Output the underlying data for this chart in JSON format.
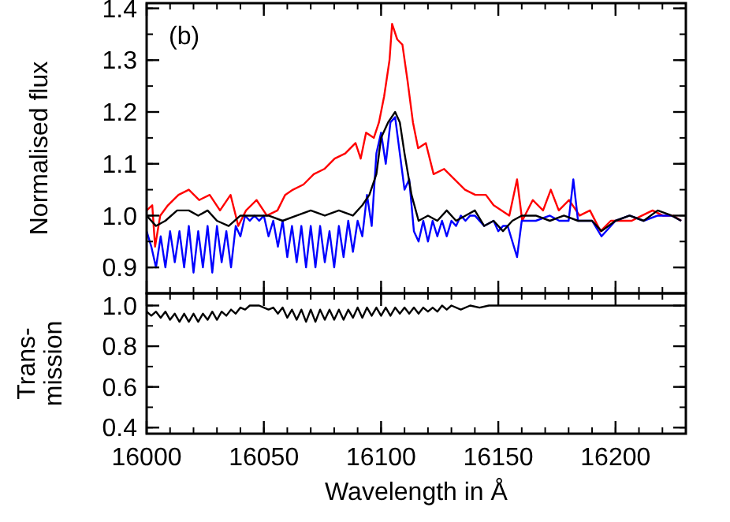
{
  "chart_data": [
    {
      "type": "line",
      "ylabel": "Normalised flux",
      "annotations": [
        "(b)"
      ],
      "xlim": [
        16000,
        16230
      ],
      "ylim": [
        0.85,
        1.41
      ],
      "tick_labels": "y",
      "grid": false,
      "line_style": "solid",
      "xticks": [
        16000,
        16050,
        16100,
        16150,
        16200
      ],
      "yticks": [
        {
          "value": 0.9,
          "label": "0.9"
        },
        {
          "value": 1,
          "label": "1.0"
        },
        {
          "value": 1.1,
          "label": "1.1"
        },
        {
          "value": 1.2,
          "label": "1.2"
        },
        {
          "value": 1.3,
          "label": "1.3"
        },
        {
          "value": 1.4,
          "label": "1.4"
        }
      ],
      "series": [
        {
          "color": "#ff0000",
          "x": [
            16000,
            16002.4,
            16003.6,
            16005.8,
            16009.1,
            16013.6,
            16018,
            16022.4,
            16026.9,
            16031.3,
            16035.8,
            16039.1,
            16042.4,
            16046.9,
            16051.3,
            16055.8,
            16059.1,
            16062.4,
            16066.9,
            16071.3,
            16075.8,
            16080.2,
            16084.7,
            16089.1,
            16091.3,
            16093.6,
            16096.9,
            16099.1,
            16101.3,
            16103.6,
            16104.7,
            16106.9,
            16109.1,
            16111.3,
            16113.6,
            16115.8,
            16119.1,
            16122.4,
            16126.9,
            16131.3,
            16135.8,
            16140.2,
            16144.7,
            16148,
            16151.3,
            16154.7,
            16158,
            16160.2,
            16164.7,
            16169.1,
            16172.4,
            16175.8,
            16180.2,
            16184.7,
            16189.1,
            16193.6,
            16198,
            16202.4,
            16206.9,
            16211.3,
            16215.8,
            16220.2,
            16224.7,
            16228
          ],
          "values": [
            1.01,
            1.02,
            0.94,
            1.0,
            1.02,
            1.04,
            1.05,
            1.03,
            1.04,
            1.01,
            1.04,
            0.98,
            1.01,
            1.03,
            1.0,
            1.01,
            1.04,
            1.05,
            1.06,
            1.08,
            1.09,
            1.11,
            1.12,
            1.14,
            1.11,
            1.16,
            1.15,
            1.18,
            1.23,
            1.3,
            1.37,
            1.34,
            1.33,
            1.26,
            1.18,
            1.13,
            1.14,
            1.08,
            1.09,
            1.07,
            1.05,
            1.04,
            1.04,
            1.02,
            1.01,
            1.0,
            1.07,
            0.99,
            1.03,
            1.01,
            1.05,
            1.01,
            1.03,
            1.0,
            1.01,
            0.97,
            0.99,
            0.99,
            0.99,
            1.0,
            1.01,
            1.0,
            1.0,
            0.99
          ]
        },
        {
          "color": "#0000ff",
          "x": [
            16000,
            16002,
            16004,
            16006,
            16008,
            16010,
            16012,
            16014,
            16016,
            16018,
            16020,
            16022,
            16024,
            16026,
            16028,
            16030,
            16032,
            16034,
            16036,
            16038,
            16040,
            16042,
            16044,
            16046,
            16048,
            16050,
            16052,
            16054,
            16056,
            16058,
            16060,
            16062,
            16064,
            16066,
            16068,
            16070,
            16072,
            16074,
            16076,
            16078,
            16080,
            16082,
            16084,
            16086,
            16088,
            16090,
            16092,
            16094,
            16096,
            16098,
            16100,
            16102,
            16104,
            16106,
            16108,
            16110,
            16112,
            16114,
            16116,
            16118,
            16120,
            16122,
            16124,
            16126,
            16128,
            16130,
            16132,
            16134,
            16136,
            16138,
            16140,
            16144,
            16148,
            16150,
            16152,
            16154,
            16158,
            16160,
            16166,
            16172,
            16176,
            16180,
            16182,
            16184,
            16190,
            16194,
            16200,
            16206,
            16212,
            16218,
            16224,
            16228
          ],
          "values": [
            0.97,
            0.94,
            0.9,
            0.96,
            0.9,
            0.97,
            0.91,
            0.97,
            0.9,
            0.98,
            0.89,
            0.97,
            0.9,
            0.98,
            0.89,
            0.98,
            0.91,
            0.97,
            0.9,
            0.98,
            0.96,
            1.0,
            0.99,
            1.0,
            0.99,
            1.0,
            0.96,
            0.99,
            0.94,
            0.99,
            0.92,
            0.98,
            0.91,
            0.98,
            0.9,
            0.98,
            0.9,
            0.98,
            0.91,
            0.97,
            0.9,
            0.98,
            0.92,
            0.99,
            0.93,
            0.99,
            0.96,
            1.04,
            0.98,
            1.12,
            1.16,
            1.1,
            1.18,
            1.19,
            1.12,
            1.05,
            1.07,
            0.97,
            0.95,
            0.99,
            0.95,
            0.99,
            0.96,
            0.99,
            0.96,
            0.99,
            0.98,
            1.0,
            0.99,
            1.0,
            1.0,
            0.98,
            0.99,
            0.97,
            0.98,
            0.98,
            0.92,
            0.99,
            0.99,
            1.0,
            0.99,
            0.99,
            1.07,
            0.99,
            0.99,
            0.96,
            0.99,
            1.0,
            0.99,
            1.0,
            1.0,
            0.99
          ]
        },
        {
          "color": "#000000",
          "x": [
            16000,
            16004,
            16008,
            16013,
            16018,
            16022,
            16026,
            16030,
            16035,
            16040,
            16046,
            16052,
            16058,
            16064,
            16070,
            16076,
            16082,
            16088,
            16092,
            16095,
            16098,
            16100,
            16103,
            16106,
            16108,
            16110,
            16113,
            16116,
            16120,
            16124,
            16128,
            16132,
            16136,
            16140,
            16144,
            16148,
            16152,
            16156,
            16160,
            16166,
            16172,
            16178,
            16184,
            16190,
            16194,
            16200,
            16206,
            16212,
            16218,
            16224,
            16228
          ],
          "values": [
            1.0,
            0.98,
            0.99,
            1.01,
            1.01,
            1.0,
            1.01,
            0.99,
            0.98,
            1.0,
            1.0,
            1.0,
            0.99,
            1.0,
            1.01,
            1.0,
            1.01,
            1.0,
            1.02,
            1.04,
            1.08,
            1.15,
            1.18,
            1.2,
            1.18,
            1.12,
            1.04,
            0.99,
            1.0,
            0.99,
            1.01,
            0.99,
            1.0,
            1.01,
            0.98,
            0.99,
            0.97,
            0.99,
            1.0,
            1.0,
            0.99,
            1.0,
            0.99,
            0.99,
            0.97,
            0.99,
            1.0,
            0.99,
            1.01,
            1.0,
            0.99
          ]
        }
      ]
    },
    {
      "type": "line",
      "ylabel": "Trans-\nmission",
      "xlabel": "Wavelength in Å",
      "xlim": [
        16000,
        16230
      ],
      "ylim": [
        0.37,
        1.06
      ],
      "grid": false,
      "line_style": "solid",
      "xticks": [
        16000,
        16050,
        16100,
        16150,
        16200
      ],
      "yticks": [
        {
          "value": 0.4,
          "label": "0.4"
        },
        {
          "value": 0.6,
          "label": "0.6"
        },
        {
          "value": 0.8,
          "label": "0.8"
        },
        {
          "value": 1,
          "label": "1.0"
        }
      ],
      "series": [
        {
          "color": "#000000",
          "x": [
            16000,
            16002,
            16004,
            16006,
            16008,
            16010,
            16012,
            16014,
            16016,
            16018,
            16020,
            16022,
            16024,
            16026,
            16028,
            16030,
            16032,
            16034,
            16036,
            16038,
            16040,
            16042,
            16044,
            16048,
            16050,
            16052,
            16054,
            16056,
            16058,
            16060,
            16062,
            16064,
            16066,
            16068,
            16070,
            16072,
            16074,
            16076,
            16078,
            16080,
            16082,
            16084,
            16086,
            16088,
            16090,
            16092,
            16094,
            16096,
            16098,
            16100,
            16102,
            16104,
            16106,
            16108,
            16110,
            16112,
            16114,
            16116,
            16118,
            16120,
            16122,
            16124,
            16126,
            16128,
            16130,
            16134,
            16138,
            16142,
            16146,
            16150,
            16170,
            16200,
            16228
          ],
          "values": [
            0.97,
            0.95,
            0.97,
            0.94,
            0.97,
            0.93,
            0.96,
            0.92,
            0.96,
            0.92,
            0.96,
            0.92,
            0.96,
            0.93,
            0.97,
            0.93,
            0.97,
            0.95,
            0.98,
            0.96,
            0.99,
            0.98,
            1.0,
            1.0,
            0.99,
            0.98,
            0.99,
            0.96,
            0.99,
            0.94,
            0.98,
            0.93,
            0.98,
            0.92,
            0.98,
            0.92,
            0.98,
            0.93,
            0.98,
            0.93,
            0.98,
            0.93,
            0.98,
            0.94,
            0.99,
            0.94,
            0.99,
            0.95,
            0.99,
            0.95,
            0.99,
            0.95,
            0.99,
            0.96,
            0.99,
            0.96,
            0.99,
            0.96,
            0.99,
            0.97,
            0.99,
            0.97,
            1.0,
            0.98,
            1.0,
            0.98,
            1.0,
            0.99,
            1.0,
            1.0,
            1.0,
            1.0,
            1.0
          ]
        }
      ]
    }
  ]
}
